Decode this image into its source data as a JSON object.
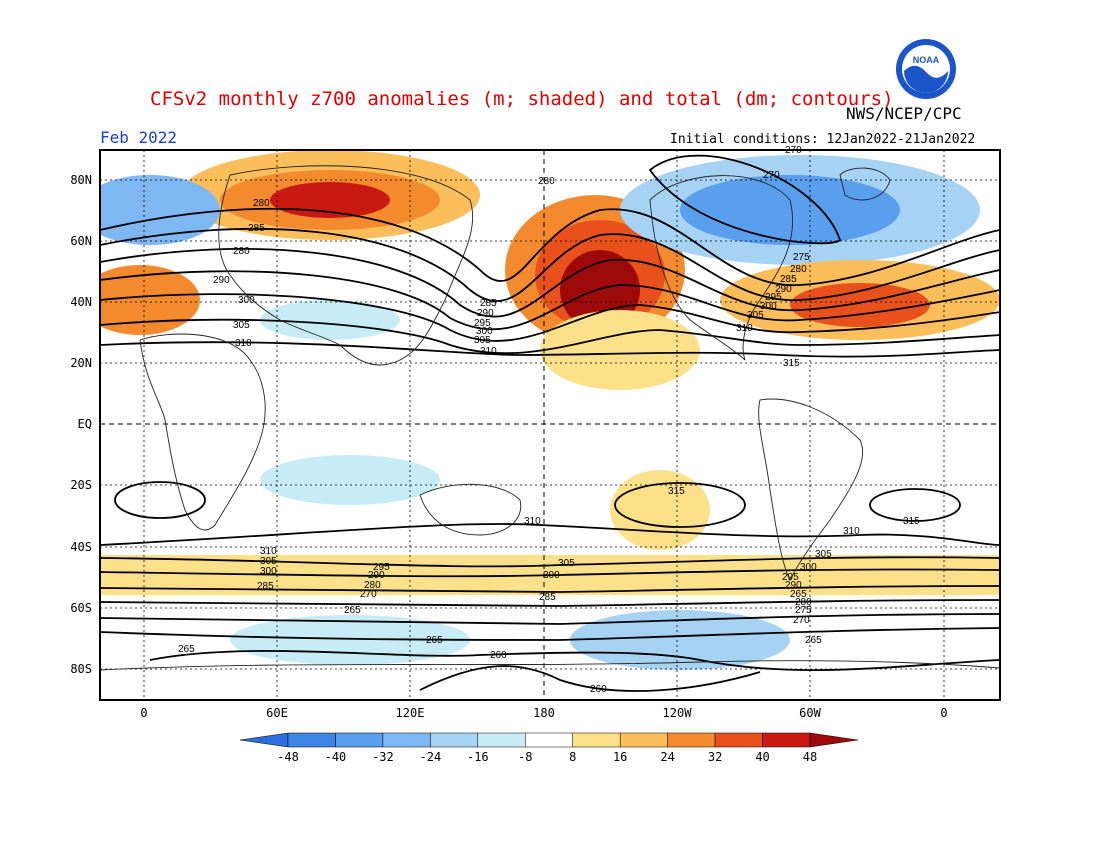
{
  "title": "CFSv2 monthly z700 anomalies (m; shaded) and total (dm; contours)",
  "agency": "NWS/NCEP/CPC",
  "logo_text": "NOAA",
  "month": "Feb 2022",
  "initial_conditions": "Initial conditions: 12Jan2022-21Jan2022",
  "lat_ticks": [
    "80N",
    "60N",
    "40N",
    "20N",
    "EQ",
    "20S",
    "40S",
    "60S",
    "80S"
  ],
  "lon_ticks": [
    "0",
    "60E",
    "120E",
    "180",
    "120W",
    "60W",
    "0"
  ],
  "colorbar": {
    "labels": [
      "-48",
      "-40",
      "-32",
      "-24",
      "-16",
      "-8",
      "8",
      "16",
      "24",
      "32",
      "40",
      "48"
    ],
    "colors": [
      "#2a6fdb",
      "#3d86e6",
      "#5a9eee",
      "#7fb7f2",
      "#a6d2f4",
      "#c8ecf6",
      "#ffffff",
      "#fde08a",
      "#fbbe5a",
      "#f48a2e",
      "#e8501c",
      "#c81a12",
      "#9e0a0a"
    ]
  },
  "contour_labels": [
    "260",
    "265",
    "270",
    "275",
    "280",
    "285",
    "290",
    "295",
    "300",
    "305",
    "310",
    "315"
  ],
  "colors": {
    "title": "#e00000",
    "month": "#1a3fd0"
  }
}
